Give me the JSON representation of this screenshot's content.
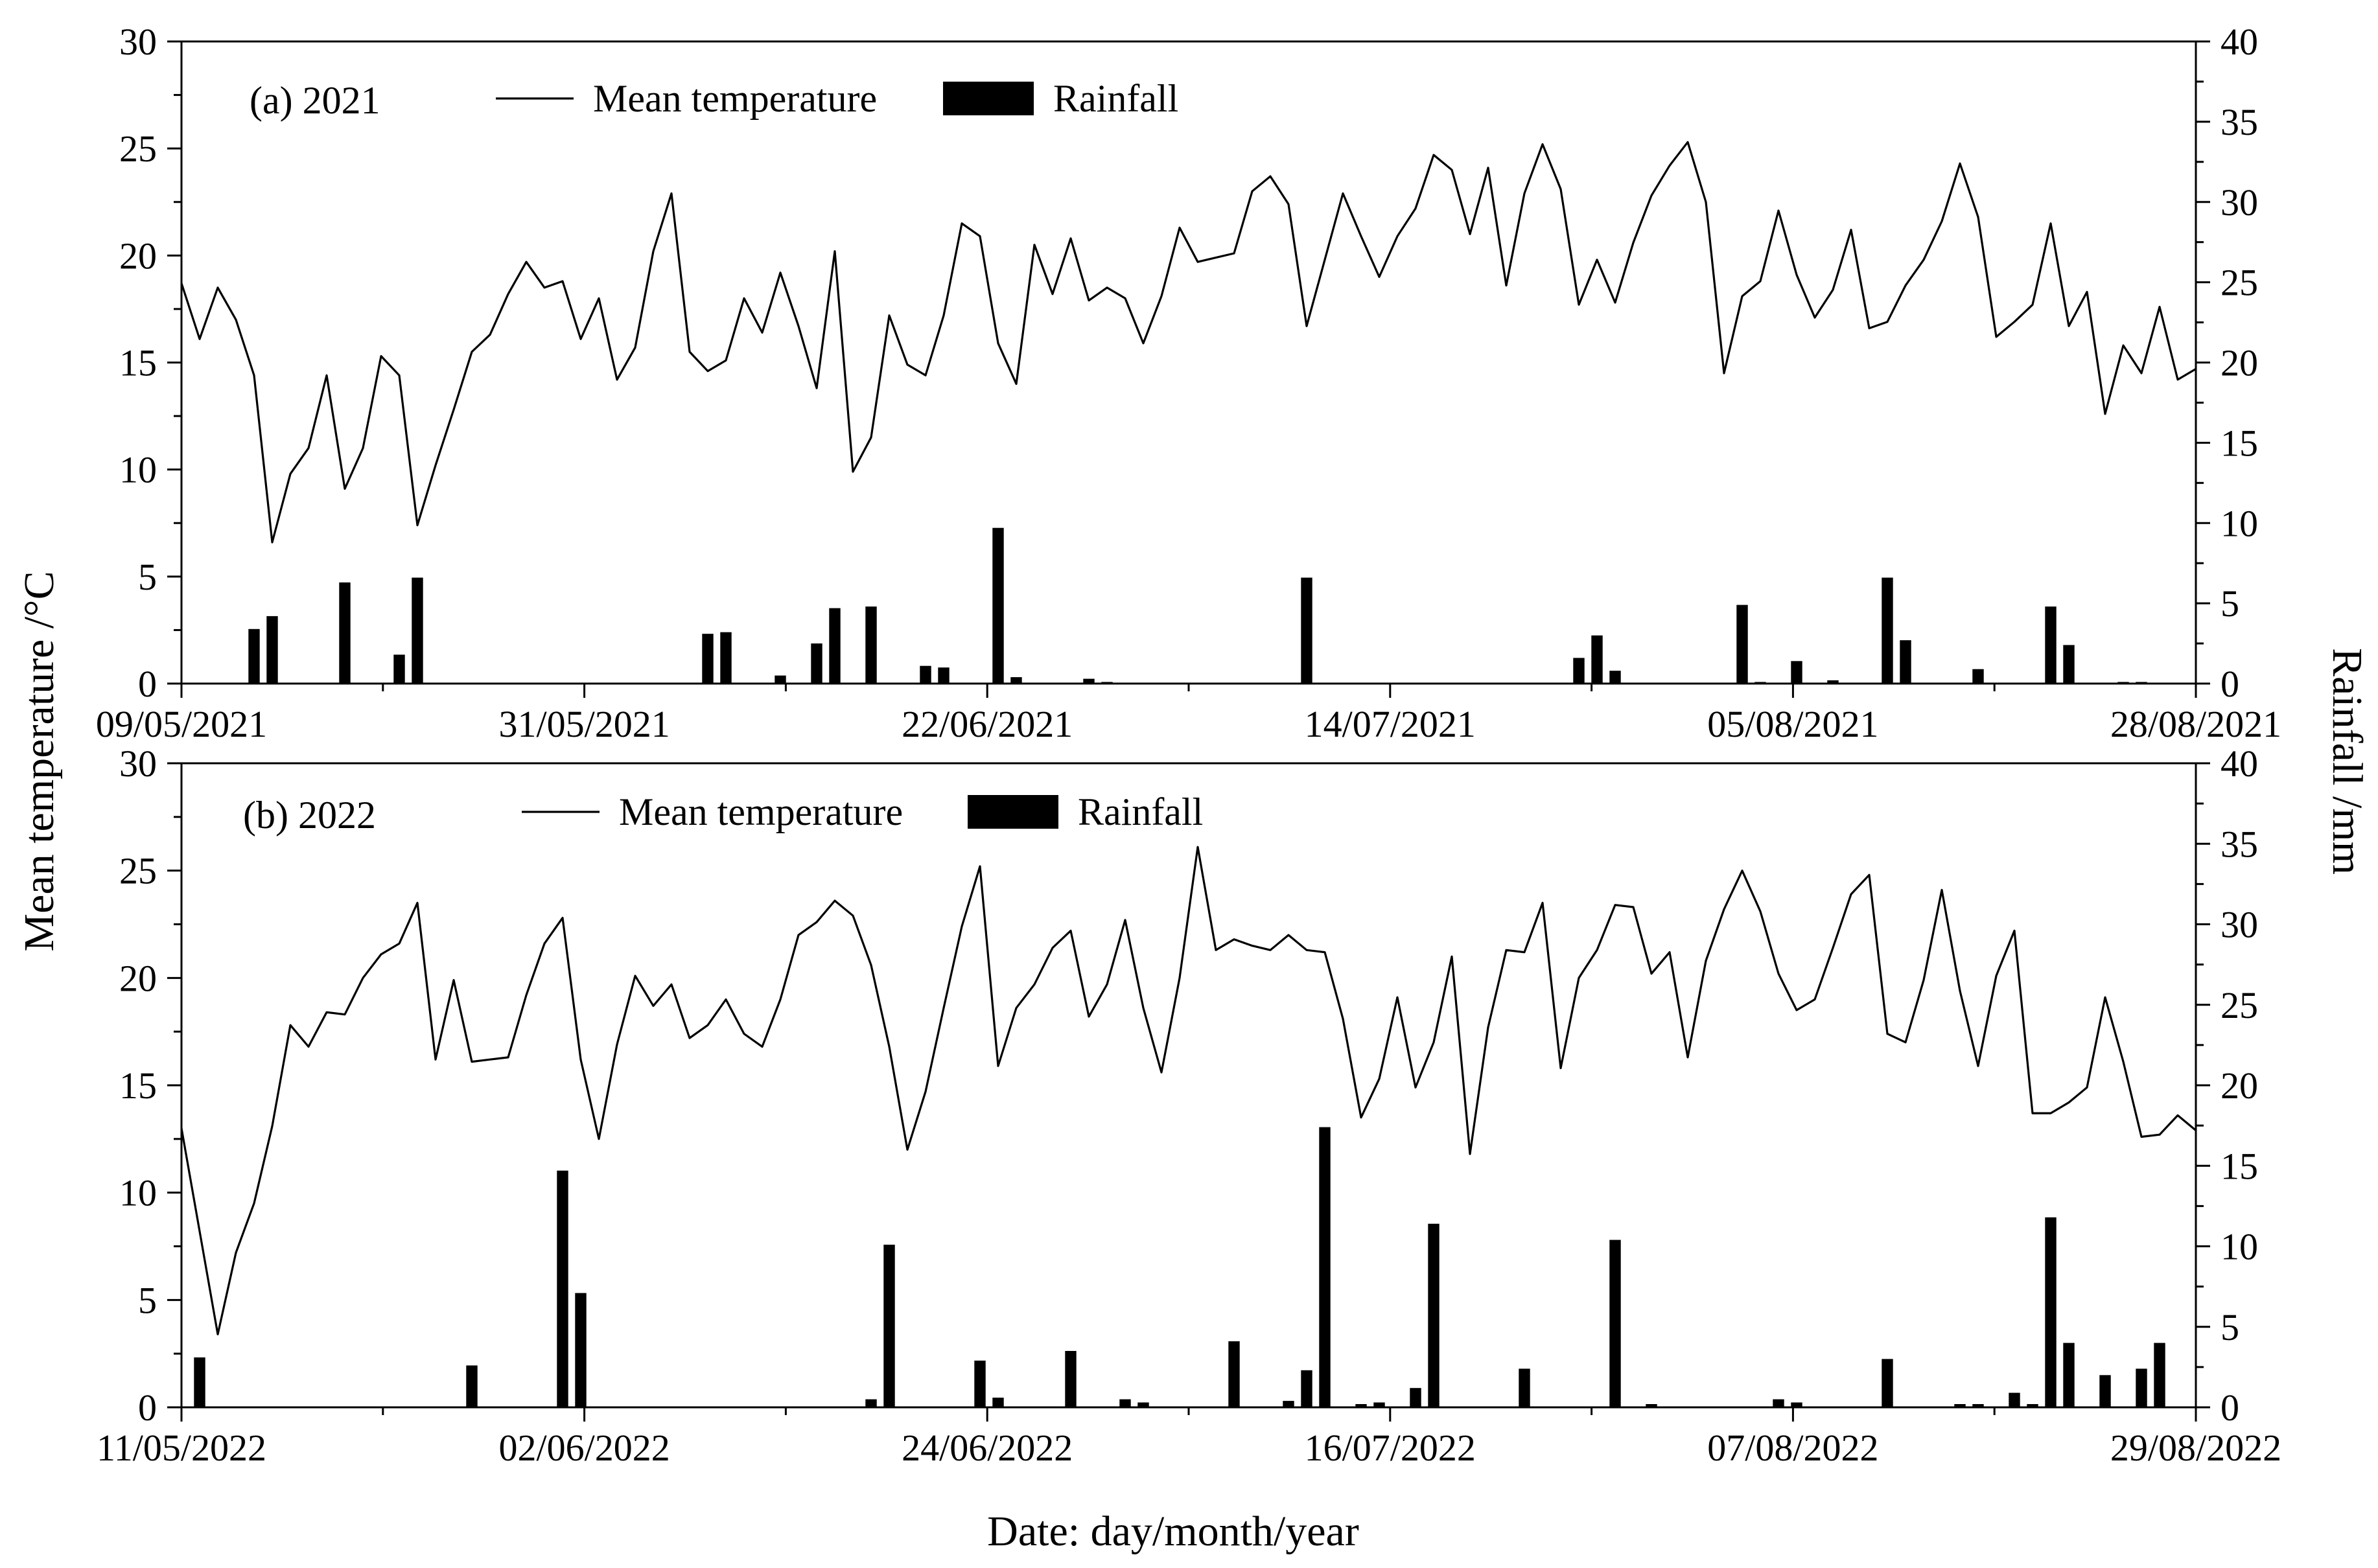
{
  "y_left_label": "Mean temperature /°C",
  "y_right_label": "Rainfall /mm",
  "x_label": "Date: day/month/year",
  "chart_data": [
    {
      "type": "line+bar",
      "panel_label": "(a) 2021",
      "legend": {
        "temperature": "Mean temperature",
        "rainfall": "Rainfall"
      },
      "xticks": [
        "09/05/2021",
        "31/05/2021",
        "22/06/2021",
        "14/07/2021",
        "05/08/2021",
        "28/08/2021"
      ],
      "y_left": {
        "min": 0,
        "max": 30,
        "ticks": [
          "0",
          "5",
          "10",
          "15",
          "20",
          "25",
          "30"
        ]
      },
      "y_right": {
        "min": 0,
        "max": 40,
        "ticks": [
          "0",
          "5",
          "10",
          "15",
          "20",
          "25",
          "30",
          "35",
          "40"
        ]
      },
      "n_days": 112,
      "temperature": [
        18.7,
        16.1,
        18.5,
        17.0,
        14.4,
        6.6,
        9.8,
        11.0,
        14.4,
        9.1,
        11.0,
        15.3,
        14.4,
        7.4,
        10.2,
        12.8,
        15.5,
        16.3,
        18.2,
        19.7,
        18.5,
        18.8,
        16.1,
        18.0,
        14.2,
        15.7,
        20.2,
        22.9,
        15.5,
        14.6,
        15.1,
        18.0,
        16.4,
        19.2,
        16.7,
        13.8,
        20.2,
        9.9,
        11.5,
        17.2,
        14.9,
        14.4,
        17.2,
        21.5,
        20.9,
        15.9,
        14.0,
        20.5,
        18.2,
        20.8,
        17.9,
        18.5,
        18.0,
        15.9,
        18.1,
        21.3,
        19.7,
        19.9,
        20.1,
        23.0,
        23.7,
        22.4,
        16.7,
        19.8,
        22.9,
        20.9,
        19.0,
        20.9,
        22.2,
        24.7,
        24.0,
        21.0,
        24.1,
        18.6,
        22.9,
        25.2,
        23.1,
        17.7,
        19.8,
        17.8,
        20.6,
        22.8,
        24.2,
        25.3,
        22.5,
        14.5,
        18.1,
        18.8,
        22.1,
        19.1,
        17.1,
        18.4,
        21.2,
        16.6,
        16.9,
        18.6,
        19.8,
        21.6,
        24.3,
        21.8,
        16.2,
        16.9,
        17.7,
        21.5,
        16.7,
        18.3,
        12.6,
        15.8,
        14.5,
        17.6,
        14.2,
        14.7
      ],
      "rainfall": {
        "4": 3.4,
        "5": 4.2,
        "9": 6.3,
        "12": 1.8,
        "13": 6.6,
        "29": 3.1,
        "30": 3.2,
        "33": 0.5,
        "35": 2.5,
        "36": 4.7,
        "38": 4.8,
        "41": 1.1,
        "42": 1.0,
        "45": 9.7,
        "46": 0.4,
        "50": 0.3,
        "51": 0.1,
        "62": 6.6,
        "77": 1.6,
        "78": 3.0,
        "79": 0.8,
        "86": 4.9,
        "87": 0.1,
        "89": 1.4,
        "91": 0.2,
        "94": 6.6,
        "95": 2.7,
        "99": 0.9,
        "103": 4.8,
        "104": 2.4,
        "107": 0.1,
        "108": 0.1
      }
    },
    {
      "type": "line+bar",
      "panel_label": "(b) 2022",
      "legend": {
        "temperature": "Mean temperature",
        "rainfall": "Rainfall"
      },
      "xticks": [
        "11/05/2022",
        "02/06/2022",
        "24/06/2022",
        "16/07/2022",
        "07/08/2022",
        "29/08/2022"
      ],
      "y_left": {
        "min": 0,
        "max": 30,
        "ticks": [
          "0",
          "5",
          "10",
          "15",
          "20",
          "25",
          "30"
        ]
      },
      "y_right": {
        "min": 0,
        "max": 40,
        "ticks": [
          "0",
          "5",
          "10",
          "15",
          "20",
          "25",
          "30",
          "35",
          "40"
        ]
      },
      "n_days": 112,
      "temperature": [
        13.0,
        8.2,
        3.4,
        7.2,
        9.5,
        13.1,
        17.8,
        16.8,
        18.4,
        18.3,
        20.0,
        21.1,
        21.6,
        23.5,
        16.2,
        19.9,
        16.1,
        16.2,
        16.3,
        19.2,
        21.6,
        22.8,
        16.2,
        12.5,
        16.9,
        20.1,
        18.7,
        19.7,
        17.2,
        17.8,
        19.0,
        17.4,
        16.8,
        19.0,
        22.0,
        22.6,
        23.6,
        22.9,
        20.6,
        16.8,
        12.0,
        14.7,
        18.6,
        22.4,
        25.2,
        15.9,
        18.6,
        19.7,
        21.4,
        22.2,
        18.2,
        19.7,
        22.7,
        18.6,
        15.6,
        20.0,
        26.1,
        21.3,
        21.8,
        21.5,
        21.3,
        22.0,
        21.3,
        21.2,
        18.1,
        13.5,
        15.3,
        19.1,
        14.9,
        17.0,
        21.0,
        11.8,
        17.7,
        21.3,
        21.2,
        23.5,
        15.8,
        20.0,
        21.3,
        23.4,
        23.3,
        20.2,
        21.2,
        16.3,
        20.8,
        23.2,
        25.0,
        23.1,
        20.2,
        18.5,
        19.0,
        21.4,
        23.9,
        24.8,
        17.4,
        17.0,
        19.9,
        24.1,
        19.4,
        15.9,
        20.1,
        22.2,
        13.7,
        13.7,
        14.2,
        14.9,
        19.1,
        16.1,
        12.6,
        12.7,
        13.6,
        12.9
      ],
      "rainfall": {
        "1": 3.1,
        "16": 2.6,
        "21": 14.7,
        "22": 7.1,
        "38": 0.5,
        "39": 10.1,
        "44": 2.9,
        "45": 0.6,
        "49": 3.5,
        "52": 0.5,
        "53": 0.3,
        "58": 4.1,
        "61": 0.4,
        "62": 2.3,
        "63": 17.4,
        "65": 0.2,
        "66": 0.3,
        "68": 1.2,
        "69": 11.4,
        "74": 2.4,
        "79": 10.4,
        "81": 0.2,
        "88": 0.5,
        "89": 0.3,
        "94": 3.0,
        "98": 0.2,
        "99": 0.2,
        "101": 0.9,
        "102": 0.2,
        "103": 11.8,
        "104": 4.0,
        "106": 2.0,
        "108": 2.4,
        "109": 4.0
      }
    }
  ]
}
